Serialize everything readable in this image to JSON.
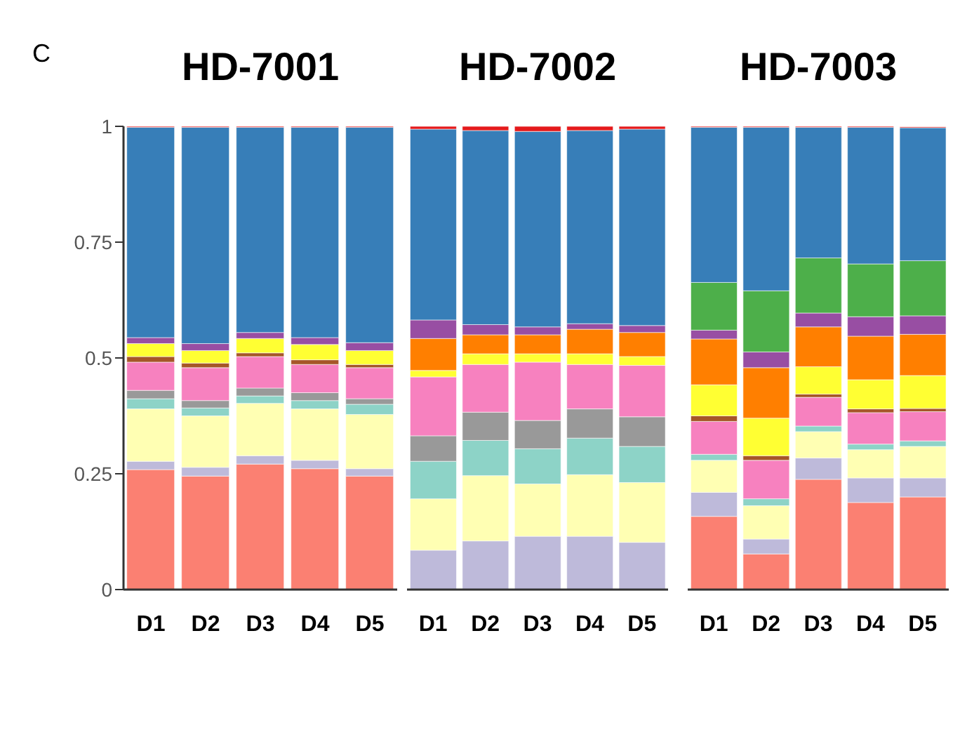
{
  "chart_data": [
    {
      "type": "bar",
      "title": "HD-7001",
      "annotations": [
        "C"
      ],
      "stacked": true,
      "categories": [
        "D1",
        "D2",
        "D3",
        "D4",
        "D5"
      ],
      "ylim": [
        0,
        1
      ],
      "yticks": [
        0,
        0.25,
        0.5,
        0.75,
        1
      ],
      "series": [
        {
          "color": "#fb8072",
          "values": [
            0.259,
            0.245,
            0.271,
            0.261,
            0.245
          ]
        },
        {
          "color": "#bebada",
          "values": [
            0.018,
            0.019,
            0.018,
            0.018,
            0.016
          ]
        },
        {
          "color": "#ffffb3",
          "values": [
            0.113,
            0.111,
            0.113,
            0.111,
            0.117
          ]
        },
        {
          "color": "#8dd3c7",
          "values": [
            0.022,
            0.017,
            0.016,
            0.018,
            0.022
          ]
        },
        {
          "color": "#999999",
          "values": [
            0.018,
            0.016,
            0.017,
            0.017,
            0.012
          ]
        },
        {
          "color": "#f781bf",
          "values": [
            0.061,
            0.071,
            0.068,
            0.061,
            0.067
          ]
        },
        {
          "color": "#a65628",
          "values": [
            0.012,
            0.01,
            0.008,
            0.01,
            0.007
          ]
        },
        {
          "color": "#ffff33",
          "values": [
            0.028,
            0.027,
            0.031,
            0.033,
            0.03
          ]
        },
        {
          "color": "#ff7f00",
          "values": [
            0,
            0,
            0,
            0,
            0
          ]
        },
        {
          "color": "#984ea3",
          "values": [
            0.013,
            0.015,
            0.013,
            0.015,
            0.017
          ]
        },
        {
          "color": "#4daf4a",
          "values": [
            0,
            0,
            0,
            0,
            0
          ]
        },
        {
          "color": "#377eb8",
          "values": [
            0.454,
            0.467,
            0.443,
            0.454,
            0.465
          ]
        },
        {
          "color": "#e41a1c",
          "values": [
            0.002,
            0.002,
            0.002,
            0.002,
            0.002
          ]
        }
      ]
    },
    {
      "type": "bar",
      "title": "HD-7002",
      "stacked": true,
      "tick_labels": "x",
      "categories": [
        "D1",
        "D2",
        "D3",
        "D4",
        "D5"
      ],
      "ylim": [
        0,
        1
      ],
      "yticks": [
        0,
        0.25,
        0.5,
        0.75,
        1
      ],
      "series": [
        {
          "color": "#fb8072",
          "values": [
            0,
            0,
            0,
            0,
            0
          ]
        },
        {
          "color": "#bebada",
          "values": [
            0.085,
            0.105,
            0.115,
            0.115,
            0.102
          ]
        },
        {
          "color": "#ffffb3",
          "values": [
            0.111,
            0.141,
            0.113,
            0.133,
            0.129
          ]
        },
        {
          "color": "#8dd3c7",
          "values": [
            0.081,
            0.076,
            0.076,
            0.079,
            0.078
          ]
        },
        {
          "color": "#999999",
          "values": [
            0.055,
            0.061,
            0.061,
            0.063,
            0.064
          ]
        },
        {
          "color": "#f781bf",
          "values": [
            0.127,
            0.103,
            0.126,
            0.096,
            0.111
          ]
        },
        {
          "color": "#a65628",
          "values": [
            0,
            0,
            0,
            0,
            0
          ]
        },
        {
          "color": "#ffff33",
          "values": [
            0.014,
            0.023,
            0.018,
            0.023,
            0.019
          ]
        },
        {
          "color": "#ff7f00",
          "values": [
            0.069,
            0.041,
            0.041,
            0.053,
            0.052
          ]
        },
        {
          "color": "#984ea3",
          "values": [
            0.04,
            0.022,
            0.017,
            0.012,
            0.015
          ]
        },
        {
          "color": "#4daf4a",
          "values": [
            0,
            0,
            0,
            0,
            0
          ]
        },
        {
          "color": "#377eb8",
          "values": [
            0.412,
            0.419,
            0.422,
            0.417,
            0.424
          ]
        },
        {
          "color": "#e41a1c",
          "values": [
            0.006,
            0.009,
            0.011,
            0.009,
            0.006
          ]
        }
      ]
    },
    {
      "type": "bar",
      "title": "HD-7003",
      "stacked": true,
      "tick_labels": "x",
      "categories": [
        "D1",
        "D2",
        "D3",
        "D4",
        "D5"
      ],
      "ylim": [
        0,
        1
      ],
      "yticks": [
        0,
        0.25,
        0.5,
        0.75,
        1
      ],
      "series": [
        {
          "color": "#fb8072",
          "values": [
            0.158,
            0.077,
            0.238,
            0.188,
            0.2
          ]
        },
        {
          "color": "#bebada",
          "values": [
            0.052,
            0.032,
            0.046,
            0.053,
            0.041
          ]
        },
        {
          "color": "#ffffb3",
          "values": [
            0.069,
            0.072,
            0.057,
            0.061,
            0.068
          ]
        },
        {
          "color": "#8dd3c7",
          "values": [
            0.013,
            0.015,
            0.012,
            0.012,
            0.012
          ]
        },
        {
          "color": "#999999",
          "values": [
            0,
            0,
            0,
            0,
            0
          ]
        },
        {
          "color": "#f781bf",
          "values": [
            0.071,
            0.083,
            0.062,
            0.068,
            0.063
          ]
        },
        {
          "color": "#a65628",
          "values": [
            0.012,
            0.01,
            0.007,
            0.008,
            0.007
          ]
        },
        {
          "color": "#ffff33",
          "values": [
            0.067,
            0.081,
            0.059,
            0.063,
            0.071
          ]
        },
        {
          "color": "#ff7f00",
          "values": [
            0.099,
            0.109,
            0.086,
            0.094,
            0.089
          ]
        },
        {
          "color": "#984ea3",
          "values": [
            0.019,
            0.034,
            0.03,
            0.042,
            0.04
          ]
        },
        {
          "color": "#4daf4a",
          "values": [
            0.103,
            0.132,
            0.119,
            0.114,
            0.119
          ]
        },
        {
          "color": "#377eb8",
          "values": [
            0.335,
            0.353,
            0.282,
            0.295,
            0.287
          ]
        },
        {
          "color": "#e41a1c",
          "values": [
            0.002,
            0.002,
            0.002,
            0.002,
            0.002
          ]
        }
      ]
    }
  ]
}
